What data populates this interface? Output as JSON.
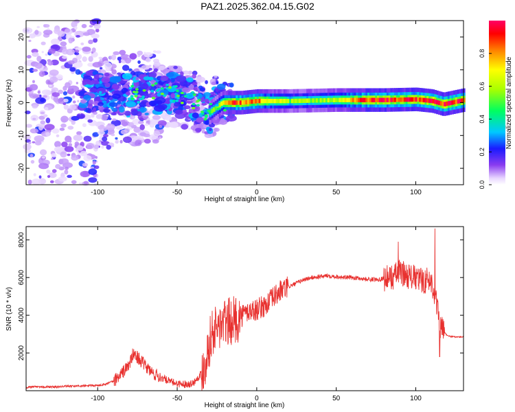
{
  "title": "PAZ1.2025.362.04.15.G02",
  "chart_data": [
    {
      "type": "heatmap",
      "name": "spectrogram",
      "xlabel": "Height of straight line (km)",
      "ylabel": "Frequency (Hz)",
      "xlim": [
        -145,
        130
      ],
      "ylim": [
        -25,
        25
      ],
      "xticks": [
        -100,
        -50,
        0,
        50,
        100
      ],
      "yticks": [
        -20,
        -10,
        0,
        10,
        20
      ],
      "colorbar": {
        "label": "Normalized spectral amplitude",
        "range": [
          0,
          1
        ],
        "ticks": [
          0.0,
          0.2,
          0.4,
          0.6,
          0.8
        ],
        "tick_labels": [
          "0.0",
          "0.2",
          "0.4",
          "0.6",
          "0.8"
        ]
      },
      "description_points": {
        "carrier_line_freq_hz": [
          [
            -145,
            5
          ],
          [
            -100,
            3
          ],
          [
            -80,
            2
          ],
          [
            -60,
            3
          ],
          [
            -50,
            3
          ],
          [
            -40,
            1
          ],
          [
            -30,
            -3
          ],
          [
            -22,
            0
          ],
          [
            -10,
            0
          ],
          [
            0,
            0.5
          ],
          [
            20,
            0.5
          ],
          [
            50,
            0.8
          ],
          [
            80,
            0.8
          ],
          [
            100,
            1
          ],
          [
            110,
            0.5
          ],
          [
            117,
            -0.5
          ],
          [
            130,
            0.8
          ]
        ],
        "peak_amplitude": [
          [
            -145,
            0.25
          ],
          [
            -100,
            0.3
          ],
          [
            -80,
            0.35
          ],
          [
            -60,
            0.45
          ],
          [
            -40,
            0.5
          ],
          [
            -25,
            0.55
          ],
          [
            -15,
            0.85
          ],
          [
            0,
            0.8
          ],
          [
            20,
            0.55
          ],
          [
            50,
            0.6
          ],
          [
            70,
            0.9
          ],
          [
            100,
            0.9
          ],
          [
            110,
            0.95
          ],
          [
            130,
            0.9
          ]
        ]
      }
    },
    {
      "type": "line",
      "name": "snr",
      "xlabel": "Height of straight line (km)",
      "ylabel": "SNR (10 * v/v)",
      "xlim": [
        -145,
        130
      ],
      "ylim": [
        0,
        8700
      ],
      "xticks": [
        -100,
        -50,
        0,
        50,
        100
      ],
      "yticks": [
        2000,
        4000,
        6000,
        8000
      ],
      "color": "#e8312f",
      "series": [
        {
          "name": "SNR",
          "x": [
            -145,
            -140,
            -130,
            -120,
            -110,
            -100,
            -95,
            -90,
            -85,
            -80,
            -78,
            -75,
            -72,
            -70,
            -65,
            -60,
            -55,
            -50,
            -45,
            -40,
            -35,
            -32,
            -30,
            -28,
            -25,
            -22,
            -20,
            -15,
            -10,
            -8,
            -5,
            0,
            5,
            10,
            15,
            20,
            25,
            30,
            35,
            40,
            45,
            50,
            55,
            60,
            65,
            70,
            75,
            80,
            85,
            90,
            95,
            100,
            105,
            108,
            110,
            112,
            115,
            117,
            120,
            125,
            130
          ],
          "y": [
            180,
            220,
            200,
            230,
            250,
            280,
            350,
            500,
            900,
            1400,
            1900,
            1800,
            1500,
            1300,
            900,
            700,
            500,
            380,
            350,
            400,
            900,
            1600,
            2500,
            3100,
            3300,
            3500,
            3600,
            3700,
            3900,
            4100,
            4200,
            4300,
            4500,
            4900,
            5300,
            5500,
            5700,
            5900,
            6000,
            6050,
            6100,
            6050,
            6000,
            6000,
            5950,
            5900,
            5900,
            5950,
            6000,
            6300,
            6100,
            5950,
            5800,
            5900,
            5700,
            5200,
            3500,
            3200,
            2900,
            2850,
            2850
          ]
        }
      ],
      "annotated_spikes": [
        {
          "x": 89,
          "y": 7900
        },
        {
          "x": 112,
          "y": 8600
        },
        {
          "x": 115,
          "y": 1800
        }
      ]
    }
  ]
}
